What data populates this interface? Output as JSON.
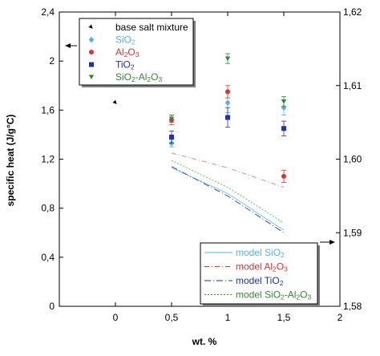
{
  "chart_data": {
    "type": "scatter",
    "xlabel": "wt. %",
    "ylabel": "specific heat (J/g°C)",
    "xlim": [
      -0.5,
      2
    ],
    "ylim": [
      0,
      2.4
    ],
    "y2lim": [
      1.58,
      1.62
    ],
    "x_ticks": [
      0,
      0.5,
      1,
      1.5,
      2
    ],
    "x_tick_labels": [
      "0",
      "0,5",
      "1",
      "1,5",
      "2"
    ],
    "y_ticks": [
      0,
      0.4,
      0.8,
      1.2,
      1.6,
      2.0,
      2.4
    ],
    "y_tick_labels": [
      "0",
      "0,4",
      "0,8",
      "1,2",
      "1,6",
      "2",
      "2,4"
    ],
    "y2_ticks": [
      1.58,
      1.59,
      1.6,
      1.61,
      1.62
    ],
    "y2_tick_labels": [
      "1,58",
      "1,59",
      "1,60",
      "1,61",
      "1,62"
    ],
    "grid": false,
    "series": [
      {
        "name": "base salt mixture",
        "kind": "marker",
        "marker": "triangle-ne",
        "color": "#000000",
        "points": [
          {
            "x": 0,
            "y": 1.66
          }
        ]
      },
      {
        "name": "SiO2",
        "kind": "marker",
        "marker": "diamond",
        "color": "#4fb3e8",
        "points": [
          {
            "x": 0.5,
            "y": 1.33,
            "err": 0.03
          },
          {
            "x": 1,
            "y": 1.66,
            "err": 0.08
          },
          {
            "x": 1.5,
            "y": 1.62,
            "err": 0.06
          }
        ]
      },
      {
        "name": "Al2O3",
        "kind": "marker",
        "marker": "circle",
        "color": "#e03030",
        "points": [
          {
            "x": 0.5,
            "y": 1.52,
            "err": 0.04
          },
          {
            "x": 1,
            "y": 1.75,
            "err": 0.05
          },
          {
            "x": 1.5,
            "y": 1.06,
            "err": 0.05
          }
        ]
      },
      {
        "name": "TiO2",
        "kind": "marker",
        "marker": "square",
        "color": "#1f2fbf",
        "points": [
          {
            "x": 0.5,
            "y": 1.38,
            "err": 0.05
          },
          {
            "x": 1,
            "y": 1.54,
            "err": 0.08
          },
          {
            "x": 1.5,
            "y": 1.45,
            "err": 0.06
          }
        ]
      },
      {
        "name": "SiO2-Al2O3",
        "kind": "marker",
        "marker": "triangle-down",
        "color": "#2e8b2e",
        "points": [
          {
            "x": 0.5,
            "y": 1.53,
            "err": 0.03
          },
          {
            "x": 1,
            "y": 2.02,
            "err": 0.04
          },
          {
            "x": 1.5,
            "y": 1.67,
            "err": 0.04
          }
        ]
      },
      {
        "name": "model SiO2",
        "kind": "line",
        "dash": "",
        "color": "#7cc6ee",
        "points": [
          {
            "x": 0.5,
            "y": 1.13
          },
          {
            "x": 1,
            "y": 0.92
          },
          {
            "x": 1.5,
            "y": 0.62
          }
        ]
      },
      {
        "name": "model Al2O3",
        "kind": "line",
        "dash": "6,3,1,3",
        "color": "#e08a8a",
        "points": [
          {
            "x": 0.5,
            "y": 1.25
          },
          {
            "x": 1,
            "y": 1.13
          },
          {
            "x": 1.5,
            "y": 0.97
          }
        ]
      },
      {
        "name": "model TiO2",
        "kind": "line",
        "dash": "8,3,1,3",
        "color": "#3a4ac0",
        "points": [
          {
            "x": 0.5,
            "y": 1.14
          },
          {
            "x": 1,
            "y": 0.9
          },
          {
            "x": 1.5,
            "y": 0.6
          }
        ]
      },
      {
        "name": "model SiO2-Al2O3",
        "kind": "line",
        "dash": "2,2",
        "color": "#6dbb6d",
        "points": [
          {
            "x": 0.5,
            "y": 1.19
          },
          {
            "x": 1,
            "y": 0.97
          },
          {
            "x": 1.5,
            "y": 0.68
          }
        ]
      }
    ],
    "legend_top": {
      "placement": "top-left",
      "entries": [
        {
          "label": "base salt mixture",
          "color": "#000000",
          "marker": "triangle-ne"
        },
        {
          "label": "SiO2",
          "color": "#4fb3e8",
          "marker": "diamond"
        },
        {
          "label": "Al2O3",
          "color": "#e03030",
          "marker": "circle"
        },
        {
          "label": "TiO2",
          "color": "#1f2fbf",
          "marker": "square"
        },
        {
          "label": "SiO2-Al2O3",
          "color": "#2e8b2e",
          "marker": "triangle-down"
        }
      ]
    },
    "legend_bottom": {
      "placement": "bottom-right",
      "entries": [
        {
          "label": "model SiO2",
          "color": "#4fb3e8",
          "dash": ""
        },
        {
          "label": "model Al2O3",
          "color": "#e03030",
          "dash": "6,3,1,3"
        },
        {
          "label": "model TiO2",
          "color": "#1f2fbf",
          "dash": "8,3,1,3"
        },
        {
          "label": "model SiO2-Al2O3",
          "color": "#2e8b2e",
          "dash": "2,2"
        }
      ]
    }
  }
}
